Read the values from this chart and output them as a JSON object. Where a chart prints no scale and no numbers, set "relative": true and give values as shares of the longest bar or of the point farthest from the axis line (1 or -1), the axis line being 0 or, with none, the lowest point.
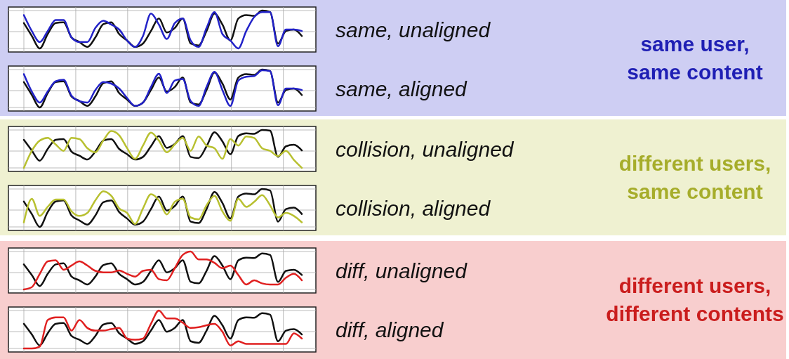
{
  "chart_data": [
    {
      "type": "line",
      "annotations": [
        "same, unaligned"
      ],
      "relative": true,
      "grid": true,
      "categories": [
        null,
        null,
        null,
        null,
        null,
        null,
        null,
        null,
        null,
        null,
        null,
        null,
        null,
        null,
        null,
        null,
        null,
        null,
        null,
        null,
        null,
        null,
        null,
        null,
        null,
        null,
        null,
        null,
        null,
        null,
        null,
        null,
        null,
        null,
        null,
        null
      ],
      "series": [
        {
          "color": "#111111",
          "values": [
            0.67,
            0.33,
            0,
            0.38,
            0.67,
            0.69,
            0.29,
            0.17,
            0.04,
            0.29,
            0.64,
            0.69,
            0.38,
            0.21,
            0.04,
            0.13,
            0.46,
            0.79,
            0.42,
            0.54,
            0.79,
            0.13,
            0.08,
            0.46,
            0.92,
            0.63,
            0.21,
            0.79,
            0.88,
            0.86,
            1,
            0.96,
            0.13,
            0.46,
            0.5,
            0.33
          ]
        },
        {
          "color": "#2222c8",
          "values": [
            0.88,
            0.46,
            0.17,
            0.46,
            0.75,
            0.75,
            0.29,
            0.17,
            0.17,
            0.54,
            0.73,
            0.63,
            0.5,
            0.21,
            0.04,
            0.33,
            0.92,
            0.63,
            0.25,
            0.67,
            0.79,
            0.21,
            0.04,
            0.54,
            0.96,
            0.38,
            0.21,
            0,
            0.46,
            0.83,
            0.96,
            0.96,
            0.06,
            0.5,
            0.5,
            0.46
          ]
        }
      ]
    },
    {
      "type": "line",
      "annotations": [
        "same, aligned"
      ],
      "relative": true,
      "grid": true,
      "categories": [
        null,
        null,
        null,
        null,
        null,
        null,
        null,
        null,
        null,
        null,
        null,
        null,
        null,
        null,
        null,
        null,
        null,
        null,
        null,
        null,
        null,
        null,
        null,
        null,
        null,
        null,
        null,
        null,
        null,
        null,
        null,
        null,
        null,
        null,
        null,
        null
      ],
      "series": [
        {
          "color": "#111111",
          "values": [
            0.67,
            0.33,
            0,
            0.38,
            0.67,
            0.69,
            0.29,
            0.17,
            0.04,
            0.29,
            0.64,
            0.69,
            0.38,
            0.21,
            0.04,
            0.13,
            0.46,
            0.79,
            0.42,
            0.54,
            0.79,
            0.13,
            0.08,
            0.46,
            0.92,
            0.63,
            0.21,
            0.79,
            0.88,
            0.86,
            1,
            0.96,
            0.13,
            0.46,
            0.5,
            0.33
          ]
        },
        {
          "color": "#2222c8",
          "values": [
            0.88,
            0.42,
            0.13,
            0.42,
            0.69,
            0.73,
            0.31,
            0.17,
            0.13,
            0.46,
            0.67,
            0.63,
            0.5,
            0.25,
            0.04,
            0.13,
            0.54,
            0.89,
            0.38,
            0.71,
            0.75,
            0.17,
            0.04,
            0.54,
            0.94,
            0.46,
            0.04,
            0.71,
            0.81,
            0.83,
            0.98,
            0.96,
            0.06,
            0.5,
            0.5,
            0.46
          ]
        }
      ]
    },
    {
      "type": "other",
      "title": "same user, same content"
    },
    {
      "type": "line",
      "annotations": [
        "collision, unaligned"
      ],
      "relative": true,
      "grid": true,
      "categories": [
        null,
        null,
        null,
        null,
        null,
        null,
        null,
        null,
        null,
        null,
        null,
        null,
        null,
        null,
        null,
        null,
        null,
        null,
        null,
        null,
        null,
        null,
        null,
        null,
        null,
        null,
        null,
        null,
        null,
        null,
        null,
        null,
        null,
        null,
        null,
        null
      ],
      "series": [
        {
          "color": "#111111",
          "values": [
            0.74,
            0.46,
            0.19,
            0.5,
            0.74,
            0.76,
            0.43,
            0.32,
            0.22,
            0.43,
            0.72,
            0.76,
            0.5,
            0.36,
            0.22,
            0.29,
            0.57,
            0.84,
            0.53,
            0.63,
            0.84,
            0.29,
            0.26,
            0.57,
            0.94,
            0.7,
            0.36,
            0.84,
            0.91,
            0.9,
            1,
            0.98,
            0.29,
            0.57,
            0.61,
            0.46
          ]
        },
        {
          "color": "#b8c030",
          "values": [
            0,
            0.45,
            0.72,
            0.79,
            0.62,
            0.45,
            0.79,
            0.76,
            0.52,
            0.41,
            0.72,
            0.97,
            0.86,
            0.52,
            0.24,
            0.59,
            0.93,
            0.72,
            0.41,
            0.62,
            0.79,
            0.45,
            0.83,
            0.59,
            0.52,
            0.24,
            0.76,
            0.59,
            0.83,
            0.79,
            0.52,
            0.45,
            0.31,
            0.45,
            0.21,
            0
          ]
        }
      ]
    },
    {
      "type": "line",
      "annotations": [
        "collision, aligned"
      ],
      "relative": true,
      "grid": true,
      "categories": [
        null,
        null,
        null,
        null,
        null,
        null,
        null,
        null,
        null,
        null,
        null,
        null,
        null,
        null,
        null,
        null,
        null,
        null,
        null,
        null,
        null,
        null,
        null,
        null,
        null,
        null,
        null,
        null,
        null,
        null,
        null,
        null,
        null,
        null,
        null,
        null
      ],
      "series": [
        {
          "color": "#111111",
          "values": [
            0.67,
            0.34,
            0,
            0.39,
            0.67,
            0.7,
            0.3,
            0.17,
            0.06,
            0.3,
            0.65,
            0.7,
            0.39,
            0.22,
            0.06,
            0.14,
            0.47,
            0.8,
            0.43,
            0.55,
            0.8,
            0.14,
            0.1,
            0.47,
            0.92,
            0.63,
            0.22,
            0.8,
            0.88,
            0.86,
            1,
            0.96,
            0.14,
            0.47,
            0.51,
            0.34
          ]
        },
        {
          "color": "#b8c030",
          "values": [
            0.12,
            0.74,
            0.29,
            0.53,
            0.72,
            0.72,
            0.41,
            0.29,
            0.37,
            0.7,
            0.94,
            0.82,
            0.49,
            0.37,
            0.08,
            0.49,
            0.86,
            0.7,
            0.33,
            0.66,
            0.74,
            0.25,
            0.2,
            0.57,
            0.82,
            0.41,
            0.16,
            0.74,
            0.53,
            0.66,
            0.84,
            0.57,
            0.25,
            0.37,
            0.29,
            0.12
          ]
        }
      ]
    },
    {
      "type": "other",
      "title": "different users, same content"
    },
    {
      "type": "line",
      "annotations": [
        "diff, unaligned"
      ],
      "relative": true,
      "grid": true,
      "categories": [
        null,
        null,
        null,
        null,
        null,
        null,
        null,
        null,
        null,
        null,
        null,
        null,
        null,
        null,
        null,
        null,
        null,
        null,
        null,
        null,
        null,
        null,
        null,
        null,
        null,
        null,
        null,
        null,
        null,
        null,
        null,
        null,
        null,
        null,
        null,
        null
      ],
      "series": [
        {
          "color": "#111111",
          "values": [
            0.66,
            0.38,
            0.09,
            0.41,
            0.66,
            0.69,
            0.34,
            0.24,
            0.13,
            0.34,
            0.64,
            0.69,
            0.41,
            0.27,
            0.13,
            0.2,
            0.49,
            0.77,
            0.45,
            0.56,
            0.77,
            0.2,
            0.16,
            0.49,
            0.88,
            0.63,
            0.27,
            0.77,
            0.84,
            0.83,
            0.95,
            0.91,
            0.2,
            0.49,
            0.52,
            0.38
          ]
        },
        {
          "color": "#e02020",
          "values": [
            0,
            0.06,
            0.41,
            0.74,
            0.77,
            0.52,
            0.63,
            0.74,
            0.63,
            0.49,
            0.45,
            0.45,
            0.5,
            0.41,
            0.34,
            0.49,
            0.52,
            0.27,
            0.24,
            0.56,
            0.91,
            1,
            0.79,
            0.79,
            0.7,
            0.56,
            0.63,
            0.38,
            0.13,
            0.24,
            0.16,
            0.13,
            0.13,
            0.31,
            0.41,
            0.24
          ]
        }
      ]
    },
    {
      "type": "line",
      "annotations": [
        "diff, aligned"
      ],
      "relative": true,
      "grid": true,
      "categories": [
        null,
        null,
        null,
        null,
        null,
        null,
        null,
        null,
        null,
        null,
        null,
        null,
        null,
        null,
        null,
        null,
        null,
        null,
        null,
        null,
        null,
        null,
        null,
        null,
        null,
        null,
        null,
        null,
        null,
        null,
        null,
        null,
        null,
        null,
        null,
        null
      ],
      "series": [
        {
          "color": "#111111",
          "values": [
            0.65,
            0.37,
            0.08,
            0.4,
            0.65,
            0.67,
            0.33,
            0.23,
            0.12,
            0.33,
            0.63,
            0.67,
            0.4,
            0.26,
            0.12,
            0.19,
            0.47,
            0.75,
            0.44,
            0.54,
            0.75,
            0.19,
            0.15,
            0.47,
            0.86,
            0.61,
            0.26,
            0.75,
            0.82,
            0.81,
            0.93,
            0.89,
            0.19,
            0.47,
            0.51,
            0.37
          ]
        },
        {
          "color": "#e02020",
          "values": [
            0,
            0,
            0.05,
            0.75,
            0.82,
            0.82,
            0.47,
            0.75,
            0.54,
            0.47,
            0.47,
            0.51,
            0.54,
            0.26,
            0.23,
            0.26,
            0.65,
            1,
            0.79,
            0.79,
            0.68,
            0.54,
            0.56,
            0.61,
            0.65,
            0.44,
            0.08,
            0.19,
            0.12,
            0.12,
            0.12,
            0.12,
            0.12,
            0.12,
            0.4,
            0.26
          ]
        }
      ]
    },
    {
      "type": "other",
      "title": "different users, different contents"
    }
  ]
}
